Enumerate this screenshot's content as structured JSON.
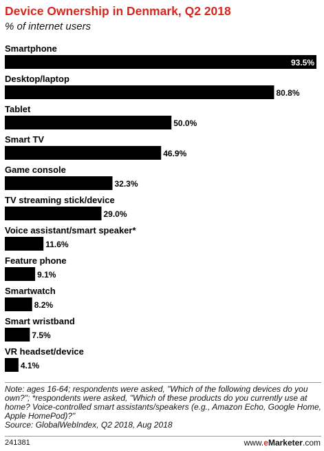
{
  "header": {
    "title": "Device Ownership in Denmark, Q2 2018",
    "subtitle": "% of internet users"
  },
  "chart_data": {
    "type": "bar",
    "orientation": "horizontal",
    "title": "Device Ownership in Denmark, Q2 2018",
    "subtitle": "% of internet users",
    "categories": [
      "Smartphone",
      "Desktop/laptop",
      "Tablet",
      "Smart TV",
      "Game console",
      "TV streaming stick/device",
      "Voice assistant/smart speaker*",
      "Feature phone",
      "Smartwatch",
      "Smart wristband",
      "VR headset/device"
    ],
    "values": [
      93.5,
      80.8,
      50.0,
      46.9,
      32.3,
      29.0,
      11.6,
      9.1,
      8.2,
      7.5,
      4.1
    ],
    "value_labels": [
      "93.5%",
      "80.8%",
      "50.0%",
      "46.9%",
      "32.3%",
      "29.0%",
      "11.6%",
      "9.1%",
      "8.2%",
      "7.5%",
      "4.1%"
    ],
    "xlim": [
      0,
      93.5
    ],
    "grid": false,
    "bar_color": "#000000"
  },
  "footer": {
    "note": "Note: ages 16-64; respondents were asked, \"Which of the following devices do you own?\"; *respondents were asked, \"Which of these products do you currently use at home? Voice-controlled smart assistants/speakers (e.g., Amazon Echo, Google Home, Apple HomePod)?\"",
    "source": "Source: GlobalWebIndex, Q2 2018, Aug 2018",
    "chart_id": "241381",
    "brand_prefix": "www.",
    "brand_accent": "e",
    "brand_name": "Marketer",
    "brand_suffix": ".com"
  },
  "colors": {
    "title": "#d7261e",
    "bar": "#000000",
    "label_inside": "#ffffff",
    "label_outside": "#000000"
  }
}
